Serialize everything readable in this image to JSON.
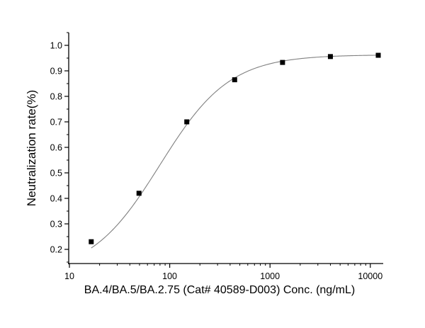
{
  "chart_data": {
    "type": "scatter",
    "subtype": "dose-response curve (log x) with fitted sigmoid",
    "title": "",
    "xlabel": "BA.4/BA.5/BA.2.75 (Cat# 40589-D003) Conc. (ng/mL)",
    "ylabel": "Neutralization rate(%)",
    "xscale": "log",
    "xlim": [
      10,
      13000
    ],
    "ylim": [
      0.144,
      1.05
    ],
    "x_ticks": [
      10,
      100,
      1000,
      10000
    ],
    "x_tick_labels": [
      "10",
      "100",
      "1000",
      "10000"
    ],
    "y_ticks": [
      0.2,
      0.3,
      0.4,
      0.5,
      0.6,
      0.7,
      0.8,
      0.9,
      1.0
    ],
    "y_tick_labels": [
      "0.2",
      "0.3",
      "0.4",
      "0.5",
      "0.6",
      "0.7",
      "0.8",
      "0.9",
      "1.0"
    ],
    "grid": false,
    "legend": null,
    "series": [
      {
        "name": "Neutralization",
        "marker": "square",
        "color": "#000000",
        "x": [
          16.5,
          49.4,
          148,
          444,
          1333,
          4000,
          12000
        ],
        "y": [
          0.23,
          0.42,
          0.7,
          0.865,
          0.933,
          0.956,
          0.961
        ]
      }
    ],
    "fit": {
      "type": "4PL",
      "color": "#808080",
      "bottom": 0.1,
      "top": 0.963,
      "ec50": 80,
      "hill": 1.25
    }
  }
}
